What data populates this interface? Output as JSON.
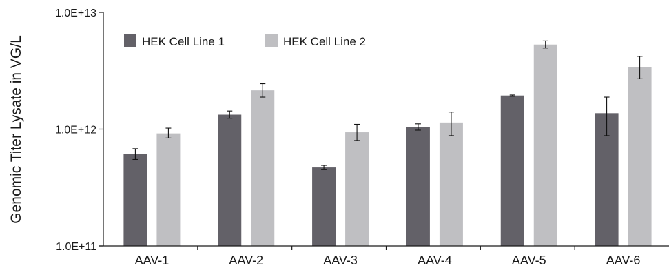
{
  "chart_data": {
    "type": "bar",
    "ylabel": "Genomic Titer Lysate in VG/L",
    "yscale": "log",
    "ylim": [
      100000000000,
      10000000000000
    ],
    "yticks": [
      {
        "value": 100000000000,
        "label": "1.0E+11"
      },
      {
        "value": 1000000000000,
        "label": "1.0E+12"
      },
      {
        "value": 10000000000000,
        "label": "1.0E+13"
      }
    ],
    "gridlines": [
      1000000000000
    ],
    "categories": [
      "AAV-1",
      "AAV-2",
      "AAV-3",
      "AAV-4",
      "AAV-5",
      "AAV-6"
    ],
    "series": [
      {
        "name": "HEK Cell Line 1",
        "color": "#636168",
        "values": [
          610000000000,
          1330000000000,
          470000000000,
          1040000000000,
          1940000000000,
          1370000000000
        ],
        "error": [
          [
            550000000000,
            680000000000
          ],
          [
            1240000000000,
            1430000000000
          ],
          [
            450000000000,
            490000000000
          ],
          [
            980000000000,
            1110000000000
          ],
          [
            1910000000000,
            1960000000000
          ],
          [
            880000000000,
            1880000000000
          ]
        ]
      },
      {
        "name": "HEK Cell Line 2",
        "color": "#bfbfc2",
        "values": [
          920000000000,
          2150000000000,
          940000000000,
          1140000000000,
          5300000000000,
          3400000000000
        ],
        "error": [
          [
            840000000000,
            1020000000000
          ],
          [
            1880000000000,
            2450000000000
          ],
          [
            800000000000,
            1100000000000
          ],
          [
            880000000000,
            1400000000000
          ],
          [
            4950000000000,
            5700000000000
          ],
          [
            2700000000000,
            4200000000000
          ]
        ]
      }
    ],
    "legend": "top-left"
  }
}
